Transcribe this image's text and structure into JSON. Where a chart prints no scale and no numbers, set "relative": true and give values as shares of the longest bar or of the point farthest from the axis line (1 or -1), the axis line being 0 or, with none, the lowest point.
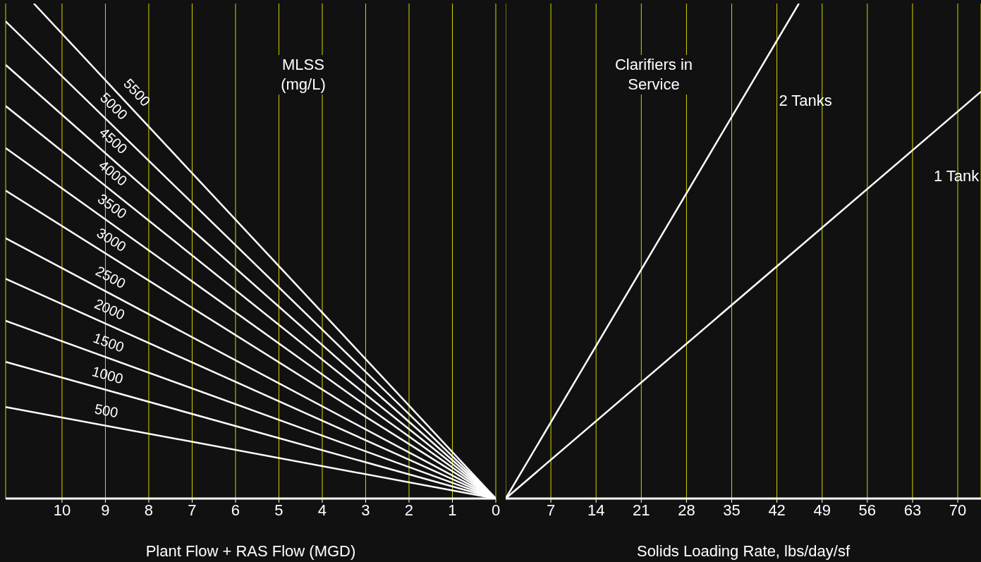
{
  "chart_data": [
    {
      "type": "line",
      "legend_title": "MLSS (mg/L)",
      "xlabel": "Plant Flow + RAS Flow (MGD)",
      "relative": true,
      "xlim": [
        11.3,
        0
      ],
      "xticks": [
        10,
        9,
        8,
        7,
        6,
        5,
        4,
        3,
        2,
        1,
        0
      ],
      "grid": "x",
      "legend": false,
      "marker": "none",
      "line_style": "solid",
      "series": [
        {
          "name": "500",
          "color": "#ffffff",
          "x": [
            0,
            11.3
          ],
          "values": [
            0,
            0.185
          ]
        },
        {
          "name": "1000",
          "color": "#ffffff",
          "x": [
            0,
            11.3
          ],
          "values": [
            0,
            0.276
          ]
        },
        {
          "name": "1500",
          "color": "#ffffff",
          "x": [
            0,
            11.3
          ],
          "values": [
            0,
            0.359
          ]
        },
        {
          "name": "2000",
          "color": "#ffffff",
          "x": [
            0,
            11.3
          ],
          "values": [
            0,
            0.444
          ]
        },
        {
          "name": "2500",
          "color": "#ffffff",
          "x": [
            0,
            11.3
          ],
          "values": [
            0,
            0.526
          ]
        },
        {
          "name": "3000",
          "color": "#ffffff",
          "x": [
            0,
            11.3
          ],
          "values": [
            0,
            0.622
          ]
        },
        {
          "name": "3500",
          "color": "#ffffff",
          "x": [
            0,
            11.3
          ],
          "values": [
            0,
            0.708
          ]
        },
        {
          "name": "4000",
          "color": "#ffffff",
          "x": [
            0,
            11.3
          ],
          "values": [
            0,
            0.793
          ]
        },
        {
          "name": "4500",
          "color": "#ffffff",
          "x": [
            0,
            11.3
          ],
          "values": [
            0,
            0.876
          ]
        },
        {
          "name": "5000",
          "color": "#ffffff",
          "x": [
            0,
            11.3
          ],
          "values": [
            0,
            0.964
          ]
        },
        {
          "name": "5500",
          "color": "#ffffff",
          "x": [
            0,
            10.65
          ],
          "values": [
            0,
            1
          ]
        }
      ]
    },
    {
      "type": "line",
      "legend_title": "Clarifiers in Service",
      "xlabel": "Solids Loading Rate, lbs/day/sf",
      "relative": true,
      "xlim": [
        0,
        73.6
      ],
      "xticks": [
        7,
        14,
        21,
        28,
        35,
        42,
        49,
        56,
        63,
        70
      ],
      "grid": "x",
      "legend": false,
      "marker": "none",
      "line_style": "solid",
      "series": [
        {
          "name": "2 Tanks",
          "color": "#ffffff",
          "x": [
            0,
            45.4
          ],
          "values": [
            0,
            1
          ]
        },
        {
          "name": "1 Tank",
          "color": "#ffffff",
          "x": [
            0,
            73.6
          ],
          "values": [
            0,
            0.822
          ]
        }
      ]
    }
  ]
}
